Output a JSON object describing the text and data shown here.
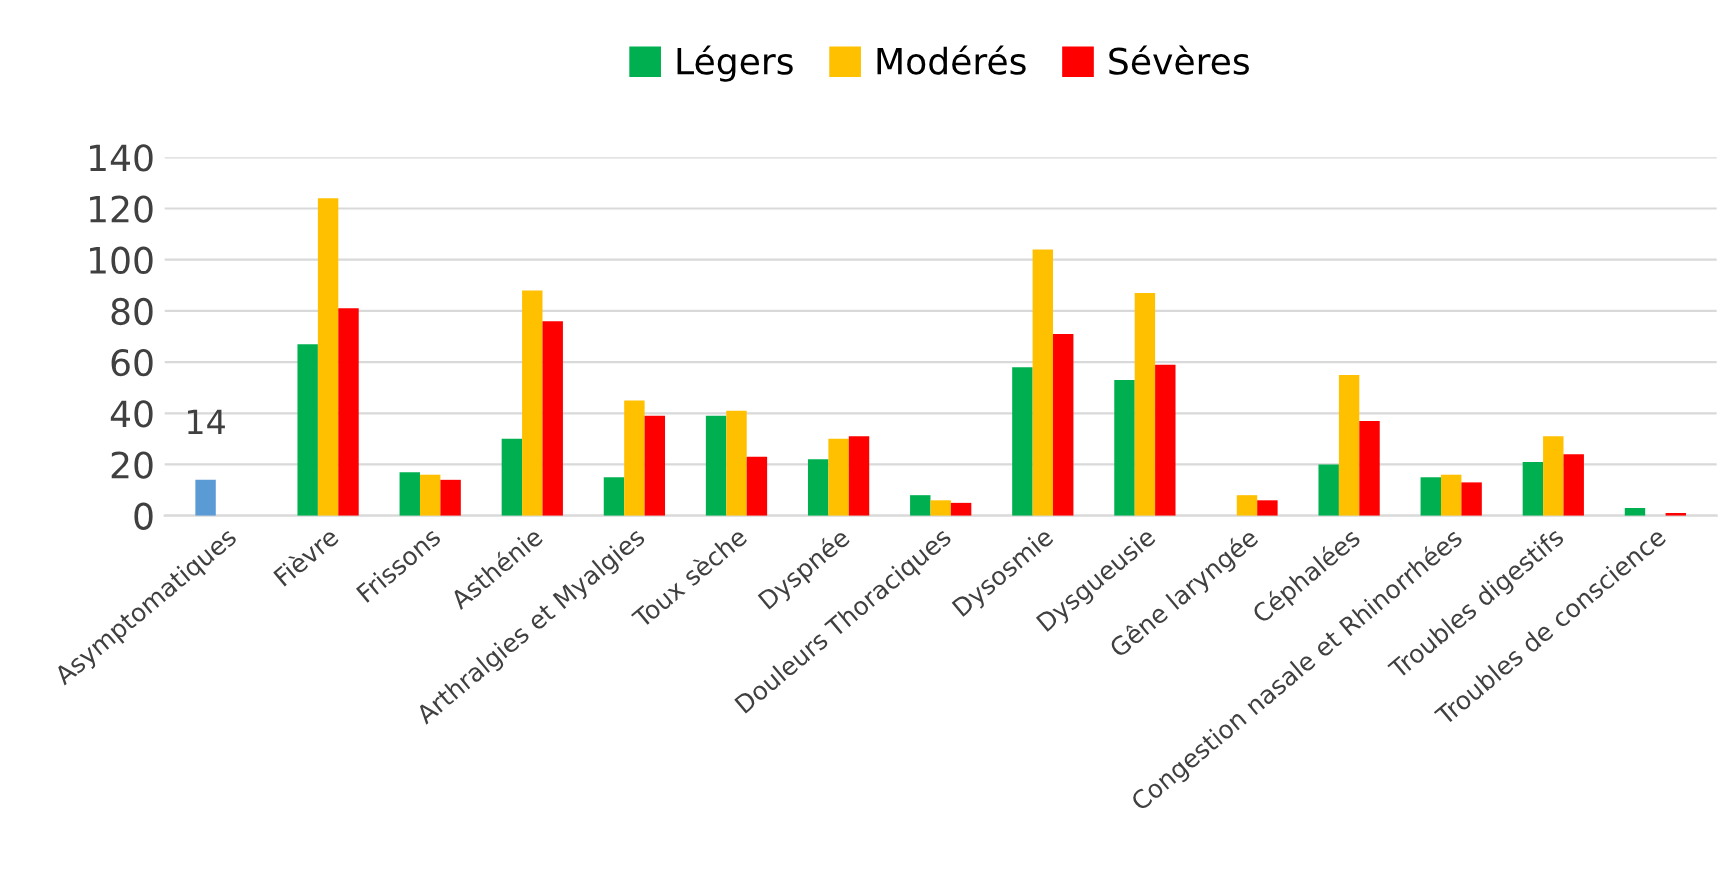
{
  "chart_data": {
    "type": "bar",
    "categories": [
      "Asymptomatiques",
      "Fièvre",
      "Frissons",
      "Asthénie",
      "Arthralgies et Myalgies",
      "Toux sèche",
      "Dyspnée",
      "Douleurs Thoraciques",
      "Dysosmie",
      "Dysgueusie",
      "Gêne laryngée",
      "Céphalées",
      "Congestion nasale et Rhinorrhées",
      "Troubles digestifs",
      "Troubles de conscience"
    ],
    "series": [
      {
        "name": "Légers",
        "color": "#00b050",
        "colors": [
          "#5b9bd5",
          "#00b050",
          "#00b050",
          "#00b050",
          "#00b050",
          "#00b050",
          "#00b050",
          "#00b050",
          "#00b050",
          "#00b050",
          "#00b050",
          "#00b050",
          "#00b050",
          "#00b050",
          "#00b050"
        ],
        "values": [
          14,
          67,
          17,
          30,
          15,
          39,
          22,
          8,
          58,
          53,
          null,
          20,
          15,
          21,
          3
        ],
        "value_labels": [
          "14",
          null,
          null,
          null,
          null,
          null,
          null,
          null,
          null,
          null,
          null,
          null,
          null,
          null,
          null
        ]
      },
      {
        "name": "Modérés",
        "color": "#ffc000",
        "values": [
          null,
          124,
          16,
          88,
          45,
          41,
          30,
          6,
          104,
          87,
          8,
          55,
          16,
          31,
          null
        ]
      },
      {
        "name": "Sévères",
        "color": "#ff0000",
        "values": [
          null,
          81,
          14,
          76,
          39,
          23,
          31,
          5,
          71,
          59,
          6,
          37,
          13,
          24,
          1
        ]
      }
    ],
    "ylim": [
      0,
      140
    ],
    "yticks": [
      0,
      20,
      40,
      60,
      80,
      100,
      120,
      140
    ],
    "grid": "y",
    "legend": "top"
  }
}
